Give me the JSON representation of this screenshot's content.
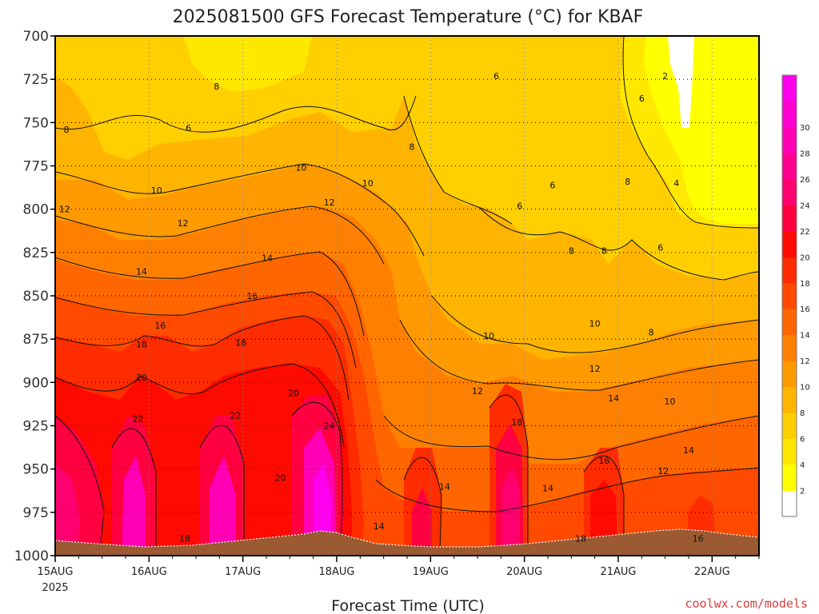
{
  "chart_data": {
    "type": "heatmap",
    "title": "2025081500 GFS Forecast Temperature (°C) for KBAF",
    "xlabel": "Forecast Time (UTC)",
    "ylabel": "",
    "x_ticks": [
      "15AUG",
      "16AUG",
      "17AUG",
      "18AUG",
      "19AUG",
      "20AUG",
      "21AUG",
      "22AUG"
    ],
    "x_year": "2025",
    "y_ticks": [
      700,
      725,
      750,
      775,
      800,
      825,
      850,
      875,
      900,
      925,
      950,
      975,
      1000
    ],
    "ylim": [
      1000,
      700
    ],
    "grid": true,
    "colorbar": {
      "ticks": [
        2,
        4,
        6,
        8,
        10,
        12,
        14,
        16,
        18,
        20,
        22,
        24,
        26,
        28,
        30
      ],
      "colors": [
        "#ffffff",
        "#ffff00",
        "#ffe800",
        "#ffcf00",
        "#ffb400",
        "#ff9a00",
        "#ff8000",
        "#ff6600",
        "#ff4a00",
        "#ff2c00",
        "#ff0a00",
        "#ff0040",
        "#ff0070",
        "#ff0090",
        "#ff00b4",
        "#ff00d2",
        "#ff00ee"
      ]
    },
    "contour_labels": [
      {
        "text": "8",
        "time": 0.12,
        "p": 754
      },
      {
        "text": "8",
        "time": 1.72,
        "p": 729
      },
      {
        "text": "6",
        "time": 1.42,
        "p": 753
      },
      {
        "text": "10",
        "time": 1.08,
        "p": 789
      },
      {
        "text": "12",
        "time": 0.1,
        "p": 800
      },
      {
        "text": "12",
        "time": 1.36,
        "p": 808
      },
      {
        "text": "10",
        "time": 2.62,
        "p": 776
      },
      {
        "text": "12",
        "time": 2.92,
        "p": 796
      },
      {
        "text": "14",
        "time": 2.26,
        "p": 828
      },
      {
        "text": "14",
        "time": 0.92,
        "p": 836
      },
      {
        "text": "16",
        "time": 2.1,
        "p": 850
      },
      {
        "text": "16",
        "time": 1.12,
        "p": 867
      },
      {
        "text": "18",
        "time": 0.92,
        "p": 878
      },
      {
        "text": "18",
        "time": 1.98,
        "p": 877
      },
      {
        "text": "20",
        "time": 0.92,
        "p": 897
      },
      {
        "text": "20",
        "time": 2.54,
        "p": 906
      },
      {
        "text": "22",
        "time": 0.88,
        "p": 921
      },
      {
        "text": "22",
        "time": 1.92,
        "p": 919
      },
      {
        "text": "24",
        "time": 2.92,
        "p": 925
      },
      {
        "text": "20",
        "time": 2.4,
        "p": 955
      },
      {
        "text": "18",
        "time": 1.38,
        "p": 990
      },
      {
        "text": "10",
        "time": 3.33,
        "p": 785
      },
      {
        "text": "8",
        "time": 3.8,
        "p": 764
      },
      {
        "text": "6",
        "time": 4.7,
        "p": 723
      },
      {
        "text": "6",
        "time": 5.3,
        "p": 786
      },
      {
        "text": "6",
        "time": 4.95,
        "p": 798
      },
      {
        "text": "8",
        "time": 5.5,
        "p": 824
      },
      {
        "text": "8",
        "time": 5.85,
        "p": 824
      },
      {
        "text": "8",
        "time": 6.1,
        "p": 784
      },
      {
        "text": "6",
        "time": 6.25,
        "p": 736
      },
      {
        "text": "2",
        "time": 6.5,
        "p": 723
      },
      {
        "text": "4",
        "time": 6.62,
        "p": 785
      },
      {
        "text": "6",
        "time": 6.45,
        "p": 822
      },
      {
        "text": "8",
        "time": 6.35,
        "p": 871
      },
      {
        "text": "10",
        "time": 4.62,
        "p": 873
      },
      {
        "text": "10",
        "time": 5.75,
        "p": 866
      },
      {
        "text": "10",
        "time": 6.55,
        "p": 911
      },
      {
        "text": "12",
        "time": 4.5,
        "p": 905
      },
      {
        "text": "12",
        "time": 5.75,
        "p": 892
      },
      {
        "text": "14",
        "time": 5.95,
        "p": 909
      },
      {
        "text": "14",
        "time": 4.15,
        "p": 960
      },
      {
        "text": "14",
        "time": 5.25,
        "p": 961
      },
      {
        "text": "14",
        "time": 6.75,
        "p": 939
      },
      {
        "text": "14",
        "time": 3.45,
        "p": 983
      },
      {
        "text": "12",
        "time": 6.48,
        "p": 951
      },
      {
        "text": "16",
        "time": 5.85,
        "p": 945
      },
      {
        "text": "16",
        "time": 6.85,
        "p": 990
      },
      {
        "text": "18",
        "time": 4.92,
        "p": 923
      },
      {
        "text": "18",
        "time": 5.6,
        "p": 990
      }
    ],
    "credit": "coolwx.com/models"
  }
}
